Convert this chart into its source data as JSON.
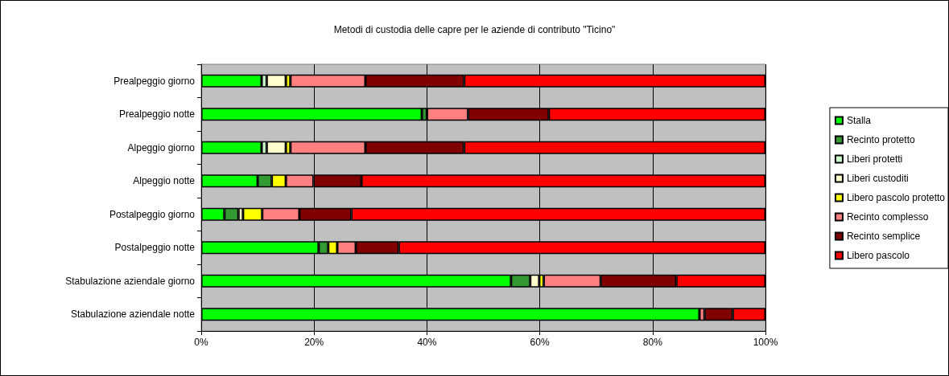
{
  "chart_data": {
    "type": "bar",
    "orientation": "horizontal",
    "stacked": true,
    "title": "Metodi di custodia delle capre per le aziende di contributo \"Ticino\"",
    "categories": [
      "Prealpeggio giorno",
      "Prealpeggio notte",
      "Alpeggio giorno",
      "Alpeggio notte",
      "Postalpeggio giorno",
      "Postalpeggio notte",
      "Stabulazione aziendale giorno",
      "Stabulazione aziendale notte"
    ],
    "series": [
      {
        "name": "Stalla",
        "color": "#00ff00",
        "values": [
          10.7,
          39.1,
          10.7,
          10.0,
          4.1,
          20.8,
          54.9,
          88.3
        ]
      },
      {
        "name": "Recinto protetto",
        "color": "#339933",
        "values": [
          0,
          0.9,
          0,
          2.5,
          2.5,
          1.7,
          3.4,
          0
        ]
      },
      {
        "name": "Liberi protetti",
        "color": "#ccffcc",
        "values": [
          0.9,
          0,
          0.9,
          0,
          0,
          0,
          0,
          0
        ]
      },
      {
        "name": "Liberi custoditi",
        "color": "#ffffcc",
        "values": [
          3.4,
          0,
          3.4,
          0,
          0.8,
          0,
          1.6,
          0
        ]
      },
      {
        "name": "Libero pascolo protetto",
        "color": "#ffff00",
        "values": [
          0.8,
          0,
          0.8,
          2.5,
          3.4,
          1.6,
          0.8,
          0
        ]
      },
      {
        "name": "Recinto complesso",
        "color": "#ff8080",
        "values": [
          13.3,
          7.3,
          13.3,
          4.9,
          6.6,
          3.3,
          10.1,
          0.9
        ]
      },
      {
        "name": "Recinto semplice",
        "color": "#800000",
        "values": [
          17.5,
          14.3,
          17.5,
          8.5,
          9.2,
          7.6,
          13.4,
          5.0
        ]
      },
      {
        "name": "Libero pascolo",
        "color": "#ff0000",
        "values": [
          53.4,
          38.4,
          53.4,
          71.6,
          73.4,
          65.0,
          15.8,
          5.8
        ]
      }
    ],
    "xlim": [
      0,
      100
    ],
    "xticks": [
      {
        "value": 0,
        "label": "0%"
      },
      {
        "value": 20,
        "label": "20%"
      },
      {
        "value": 40,
        "label": "40%"
      },
      {
        "value": 60,
        "label": "60%"
      },
      {
        "value": 80,
        "label": "80%"
      },
      {
        "value": 100,
        "label": "100%"
      }
    ],
    "grid": "x",
    "legend": "right"
  }
}
